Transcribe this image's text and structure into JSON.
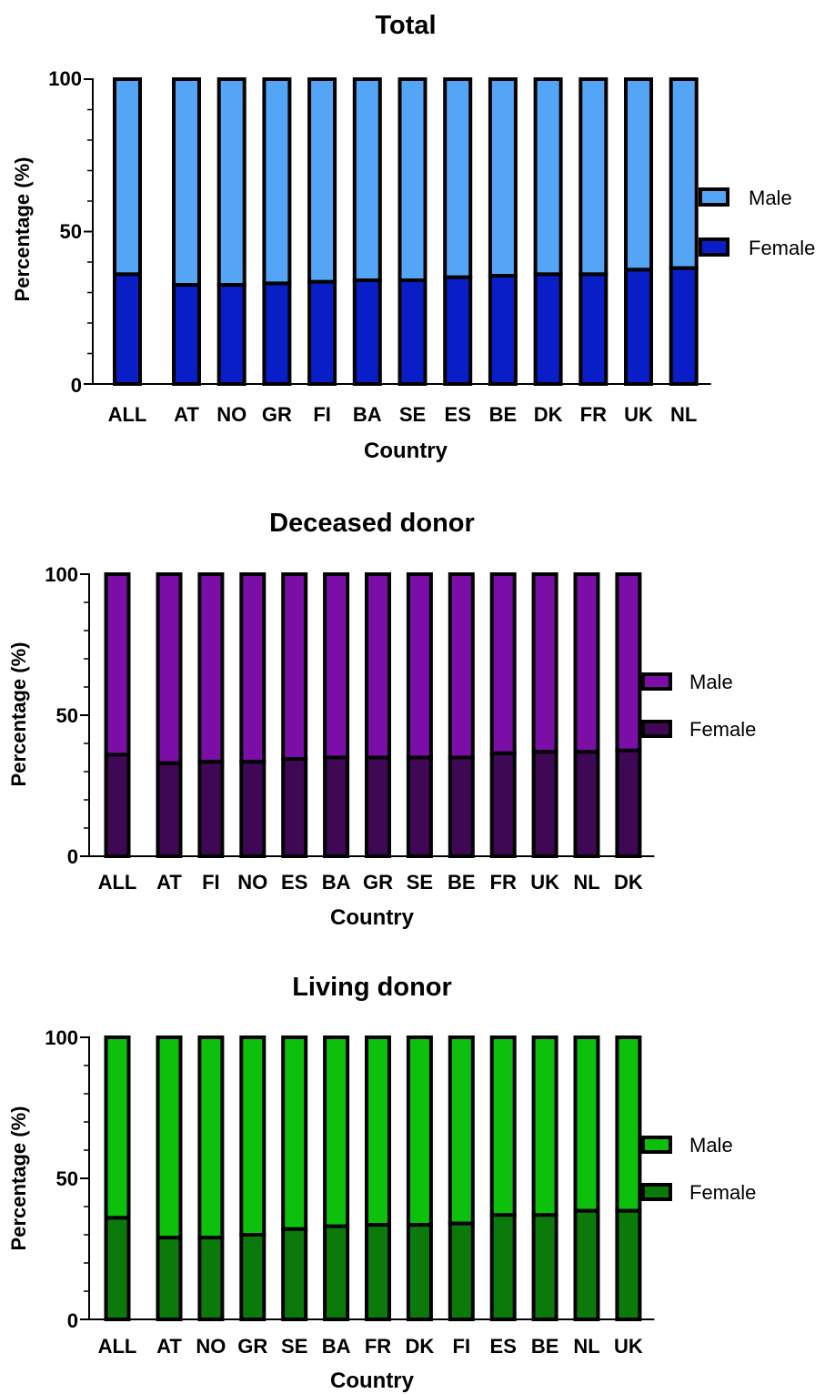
{
  "chart_data": [
    {
      "type": "bar",
      "stacked": true,
      "title": "Total",
      "xlabel": "Country",
      "ylabel": "Percentage (%)",
      "ylim": [
        0,
        100
      ],
      "yticks": [
        "0",
        "50",
        "100"
      ],
      "categories": [
        "ALL",
        "AT",
        "NO",
        "GR",
        "FI",
        "BA",
        "SE",
        "ES",
        "BE",
        "DK",
        "FR",
        "UK",
        "NL"
      ],
      "legend_position": "right",
      "series": [
        {
          "name": "Female",
          "color": "#0a1ec8",
          "values": [
            36,
            32.5,
            32.5,
            33,
            33.5,
            34,
            34,
            35,
            35.5,
            36,
            36,
            37.5,
            38
          ]
        },
        {
          "name": "Male",
          "color": "#55a5f7",
          "values": [
            64,
            67.5,
            67.5,
            67,
            66.5,
            66,
            66,
            65,
            64.5,
            64,
            64,
            62.5,
            62
          ]
        }
      ]
    },
    {
      "type": "bar",
      "stacked": true,
      "title": "Deceased donor",
      "xlabel": "Country",
      "ylabel": "Percentage (%)",
      "ylim": [
        0,
        100
      ],
      "yticks": [
        "0",
        "50",
        "100"
      ],
      "categories": [
        "ALL",
        "AT",
        "FI",
        "NO",
        "ES",
        "BA",
        "GR",
        "SE",
        "BE",
        "FR",
        "UK",
        "NL",
        "DK"
      ],
      "legend_position": "right",
      "series": [
        {
          "name": "Female",
          "color": "#3e0854",
          "values": [
            36,
            33,
            33.5,
            33.5,
            34.5,
            35,
            35,
            35,
            35,
            36.5,
            37,
            37,
            37.5
          ]
        },
        {
          "name": "Male",
          "color": "#7a0ea6",
          "values": [
            64,
            67,
            66.5,
            66.5,
            65.5,
            65,
            65,
            65,
            65,
            63.5,
            63,
            63,
            62.5
          ]
        }
      ]
    },
    {
      "type": "bar",
      "stacked": true,
      "title": "Living donor",
      "xlabel": "Country",
      "ylabel": "Percentage (%)",
      "ylim": [
        0,
        100
      ],
      "yticks": [
        "0",
        "50",
        "100"
      ],
      "categories": [
        "ALL",
        "AT",
        "NO",
        "GR",
        "SE",
        "BA",
        "FR",
        "DK",
        "FI",
        "ES",
        "BE",
        "NL",
        "UK"
      ],
      "legend_position": "right",
      "series": [
        {
          "name": "Female",
          "color": "#0b7a0b",
          "values": [
            36,
            29,
            29,
            30,
            32,
            33,
            33.5,
            33.5,
            34,
            37,
            37,
            38.5,
            38.5
          ]
        },
        {
          "name": "Male",
          "color": "#0cc00c",
          "values": [
            64,
            71,
            71,
            70,
            68,
            67,
            66.5,
            66.5,
            66,
            63,
            63,
            61.5,
            61.5
          ]
        }
      ]
    }
  ]
}
